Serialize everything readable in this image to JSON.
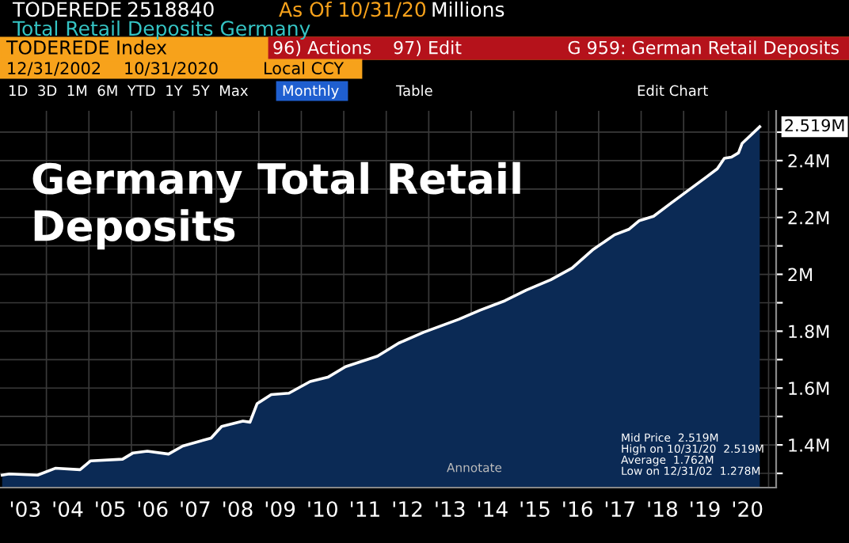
{
  "chart_data": {
    "type": "area",
    "title": "Germany Total Retail Deposits",
    "x": [
      "2002-12",
      "2003-02",
      "2003-10",
      "2004-03",
      "2004-10",
      "2005-01",
      "2005-10",
      "2006-01",
      "2006-05",
      "2006-11",
      "2007-03",
      "2007-11",
      "2008-02",
      "2008-08",
      "2008-10",
      "2008-12",
      "2009-04",
      "2009-09",
      "2010-03",
      "2010-08",
      "2011-01",
      "2011-10",
      "2012-04",
      "2012-11",
      "2013-09",
      "2014-03",
      "2014-10",
      "2015-04",
      "2015-11",
      "2016-05",
      "2016-11",
      "2017-05",
      "2017-09",
      "2017-12",
      "2018-04",
      "2018-09",
      "2019-02",
      "2019-07",
      "2019-10",
      "2019-12",
      "2020-02",
      "2020-04",
      "2020-05",
      "2020-10"
    ],
    "series": [
      {
        "color": "#ffffff",
        "values": [
          1.294,
          1.298,
          1.294,
          1.318,
          1.313,
          1.344,
          1.35,
          1.372,
          1.378,
          1.368,
          1.396,
          1.424,
          1.465,
          1.484,
          1.48,
          1.545,
          1.577,
          1.582,
          1.623,
          1.638,
          1.675,
          1.712,
          1.758,
          1.796,
          1.842,
          1.874,
          1.907,
          1.944,
          1.981,
          2.022,
          2.088,
          2.139,
          2.158,
          2.189,
          2.204,
          2.251,
          2.297,
          2.343,
          2.371,
          2.408,
          2.412,
          2.427,
          2.46,
          2.519
        ]
      }
    ],
    "xlim": [
      "2002-11-28",
      "2021-03-05"
    ],
    "xticks": [
      {
        "value": "2003-07-01",
        "label": "'03"
      },
      {
        "value": "2004-07-01",
        "label": "'04"
      },
      {
        "value": "2005-07-01",
        "label": "'05"
      },
      {
        "value": "2006-07-01",
        "label": "'06"
      },
      {
        "value": "2007-07-01",
        "label": "'07"
      },
      {
        "value": "2008-07-01",
        "label": "'08"
      },
      {
        "value": "2009-07-01",
        "label": "'09"
      },
      {
        "value": "2010-07-01",
        "label": "'10"
      },
      {
        "value": "2011-07-01",
        "label": "'11"
      },
      {
        "value": "2012-07-01",
        "label": "'12"
      },
      {
        "value": "2013-07-01",
        "label": "'13"
      },
      {
        "value": "2014-07-01",
        "label": "'14"
      },
      {
        "value": "2015-07-01",
        "label": "'15"
      },
      {
        "value": "2016-07-01",
        "label": "'16"
      },
      {
        "value": "2017-07-01",
        "label": "'17"
      },
      {
        "value": "2018-07-01",
        "label": "'18"
      },
      {
        "value": "2019-07-01",
        "label": "'19"
      },
      {
        "value": "2020-07-01",
        "label": "'20"
      },
      {
        "value": "2004-01-01",
        "label": null
      },
      {
        "value": "2005-01-01",
        "label": null
      },
      {
        "value": "2006-01-01",
        "label": null
      },
      {
        "value": "2007-01-01",
        "label": null
      },
      {
        "value": "2008-01-01",
        "label": null
      },
      {
        "value": "2009-01-01",
        "label": null
      },
      {
        "value": "2010-01-01",
        "label": null
      },
      {
        "value": "2011-01-01",
        "label": null
      },
      {
        "value": "2012-01-01",
        "label": null
      },
      {
        "value": "2013-01-01",
        "label": null
      },
      {
        "value": "2014-01-01",
        "label": null
      },
      {
        "value": "2015-01-01",
        "label": null
      },
      {
        "value": "2016-01-01",
        "label": null
      },
      {
        "value": "2017-01-01",
        "label": null
      },
      {
        "value": "2018-01-01",
        "label": null
      },
      {
        "value": "2019-01-01",
        "label": null
      },
      {
        "value": "2020-01-01",
        "label": null
      },
      {
        "value": "2021-01-01",
        "label": null
      }
    ],
    "ylim": [
      1.25,
      2.575
    ],
    "yticks": [
      {
        "value": 1.3,
        "label": null
      },
      {
        "value": 1.4,
        "label": "1.4M"
      },
      {
        "value": 1.5,
        "label": null
      },
      {
        "value": 1.6,
        "label": "1.6M"
      },
      {
        "value": 1.7,
        "label": null
      },
      {
        "value": 1.8,
        "label": "1.8M"
      },
      {
        "value": 1.9,
        "label": null
      },
      {
        "value": 2,
        "label": "2M"
      },
      {
        "value": 2.1,
        "label": null
      },
      {
        "value": 2.2,
        "label": "2.2M"
      },
      {
        "value": 2.3,
        "label": null
      },
      {
        "value": 2.4,
        "label": "2.4M"
      },
      {
        "value": 2.5,
        "label": null
      }
    ],
    "grid": true,
    "annotations": [
      "TODEREDE",
      "2518840",
      "As Of 10/31/20",
      "Millions",
      "Total Retail Deposits Germany",
      "TODEREDE Index",
      "96) Actions",
      "97) Edit",
      "G 959: German Retail Deposits",
      "12/31/2002",
      "10/31/2020",
      "Local CCY",
      "1D  3D  1M  6M  YTD  1Y  5Y  Max",
      "Monthly",
      "Table",
      "Edit Chart",
      "Annotate",
      "Mid Price  2.519M",
      "High on 10/31/20  2.519M",
      "Average  1.762M",
      "Low on 12/31/02  1.278M",
      {
        "text": "2.519M",
        "x": "2020-10",
        "y": 2.519
      }
    ]
  }
}
